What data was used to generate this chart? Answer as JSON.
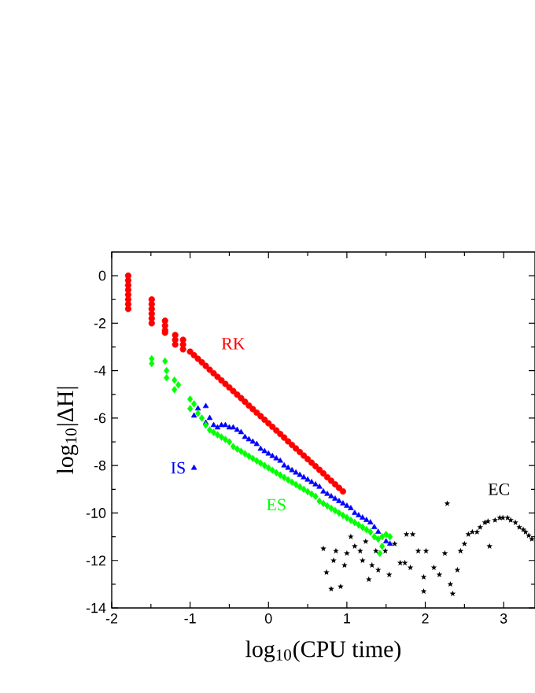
{
  "chart_data": {
    "type": "scatter",
    "xlabel": "log$_{10}$(CPU time)",
    "ylabel": "log$_{10}$|ΔH|",
    "xlim": [
      -2,
      3.4
    ],
    "ylim": [
      -14,
      1
    ],
    "xticks": [
      -2,
      -1,
      0,
      1,
      2,
      3
    ],
    "yticks": [
      -14,
      -12,
      -10,
      -8,
      -6,
      -4,
      -2,
      0
    ],
    "grid": false,
    "series": [
      {
        "name": "RK",
        "color": "#ff0000",
        "marker": "circle",
        "x": [
          -1.79,
          -1.79,
          -1.79,
          -1.79,
          -1.79,
          -1.79,
          -1.79,
          -1.79,
          -1.49,
          -1.49,
          -1.49,
          -1.49,
          -1.49,
          -1.49,
          -1.32,
          -1.32,
          -1.32,
          -1.32,
          -1.19,
          -1.19,
          -1.19,
          -1.09,
          -1.09,
          -1.09,
          -1.0,
          -0.95,
          -0.9,
          -0.85,
          -0.8,
          -0.75,
          -0.7,
          -0.65,
          -0.6,
          -0.55,
          -0.5,
          -0.45,
          -0.4,
          -0.35,
          -0.3,
          -0.25,
          -0.2,
          -0.15,
          -0.1,
          -0.05,
          0,
          0.05,
          0.1,
          0.15,
          0.2,
          0.25,
          0.3,
          0.35,
          0.4,
          0.45,
          0.5,
          0.55,
          0.6,
          0.65,
          0.7,
          0.75,
          0.8,
          0.85,
          0.9,
          0.95
        ],
        "values": [
          0,
          -0.2,
          -0.4,
          -0.6,
          -0.8,
          -1.0,
          -1.2,
          -1.4,
          -1.0,
          -1.2,
          -1.4,
          -1.6,
          -1.8,
          -2.0,
          -1.9,
          -2.1,
          -2.3,
          -2.4,
          -2.5,
          -2.7,
          -2.9,
          -2.7,
          -2.9,
          -3.1,
          -3.2,
          -3.35,
          -3.5,
          -3.65,
          -3.8,
          -3.96,
          -4.11,
          -4.26,
          -4.41,
          -4.56,
          -4.71,
          -4.86,
          -5.01,
          -5.16,
          -5.31,
          -5.47,
          -5.62,
          -5.77,
          -5.92,
          -6.07,
          -6.22,
          -6.37,
          -6.52,
          -6.67,
          -6.82,
          -6.98,
          -7.13,
          -7.28,
          -7.43,
          -7.58,
          -7.73,
          -7.88,
          -8.03,
          -8.18,
          -8.33,
          -8.49,
          -8.64,
          -8.79,
          -8.94,
          -9.09
        ]
      },
      {
        "name": "IS",
        "color": "#0000ff",
        "marker": "triangle",
        "x": [
          -0.95,
          -0.9,
          -0.8,
          -0.8,
          -0.75,
          -0.7,
          -0.65,
          -0.6,
          -0.55,
          -0.5,
          -0.45,
          -0.4,
          -0.35,
          -0.3,
          -0.25,
          -0.2,
          -0.15,
          -0.1,
          -0.05,
          0,
          0.05,
          0.1,
          0.15,
          0.2,
          0.25,
          0.3,
          0.35,
          0.4,
          0.45,
          0.5,
          0.55,
          0.6,
          0.65,
          0.7,
          0.75,
          0.8,
          0.85,
          0.9,
          0.95,
          1.0,
          1.05,
          1.1,
          1.15,
          1.2,
          1.25,
          1.3,
          1.35,
          1.4,
          1.5,
          1.55,
          -0.95
        ],
        "values": [
          -5.9,
          -5.6,
          -5.5,
          -6.2,
          -6.0,
          -6.3,
          -6.4,
          -6.3,
          -6.3,
          -6.4,
          -6.4,
          -6.5,
          -6.6,
          -6.8,
          -6.9,
          -7.0,
          -7.1,
          -7.3,
          -7.4,
          -7.5,
          -7.6,
          -7.7,
          -7.8,
          -8.0,
          -8.1,
          -8.2,
          -8.3,
          -8.4,
          -8.5,
          -8.6,
          -8.7,
          -8.8,
          -8.9,
          -9.1,
          -9.2,
          -9.3,
          -9.4,
          -9.5,
          -9.6,
          -9.7,
          -9.8,
          -10.0,
          -10.1,
          -10.2,
          -10.3,
          -10.4,
          -10.6,
          -10.8,
          -11.2,
          -11.3,
          -8.1
        ]
      },
      {
        "name": "ES",
        "color": "#00ff00",
        "marker": "diamond",
        "x": [
          -1.49,
          -1.49,
          -1.32,
          -1.3,
          -1.3,
          -1.2,
          -1.2,
          -1.15,
          -1.0,
          -1.0,
          -0.95,
          -0.9,
          -0.85,
          -0.8,
          -0.75,
          -0.7,
          -0.65,
          -0.6,
          -0.55,
          -0.5,
          -0.45,
          -0.4,
          -0.35,
          -0.3,
          -0.25,
          -0.2,
          -0.15,
          -0.1,
          -0.05,
          0,
          0.05,
          0.1,
          0.15,
          0.2,
          0.25,
          0.3,
          0.35,
          0.4,
          0.45,
          0.5,
          0.55,
          0.6,
          0.65,
          0.7,
          0.75,
          0.8,
          0.85,
          0.9,
          0.95,
          1.0,
          1.05,
          1.1,
          1.15,
          1.2,
          1.25,
          1.3,
          1.35,
          1.4,
          1.45,
          1.5,
          1.55,
          1.45,
          1.42
        ],
        "values": [
          -3.5,
          -3.7,
          -3.6,
          -4.0,
          -4.3,
          -4.4,
          -4.8,
          -4.6,
          -5.2,
          -5.6,
          -5.4,
          -5.8,
          -6.0,
          -6.3,
          -6.5,
          -6.6,
          -6.7,
          -6.8,
          -6.9,
          -7.0,
          -7.2,
          -7.3,
          -7.4,
          -7.5,
          -7.6,
          -7.7,
          -7.8,
          -7.9,
          -8.0,
          -8.1,
          -8.2,
          -8.3,
          -8.4,
          -8.5,
          -8.6,
          -8.7,
          -8.8,
          -8.9,
          -9.0,
          -9.1,
          -9.2,
          -9.3,
          -9.5,
          -9.6,
          -9.7,
          -9.8,
          -9.9,
          -10.0,
          -10.1,
          -10.2,
          -10.3,
          -10.4,
          -10.5,
          -10.6,
          -10.7,
          -10.8,
          -11.0,
          -11.1,
          -11.0,
          -10.9,
          -11.0,
          -11.4,
          -11.7
        ]
      },
      {
        "name": "EC",
        "color": "#000000",
        "marker": "star",
        "x": [
          0.7,
          0.74,
          0.8,
          0.83,
          0.86,
          0.92,
          0.97,
          1.0,
          1.05,
          1.1,
          1.17,
          1.2,
          1.24,
          1.28,
          1.32,
          1.37,
          1.4,
          1.49,
          1.54,
          1.61,
          1.68,
          1.74,
          1.76,
          1.81,
          1.84,
          1.91,
          1.98,
          1.98,
          2.01,
          2.11,
          2.18,
          2.25,
          2.28,
          2.32,
          2.35,
          2.41,
          2.45,
          2.5,
          2.55,
          2.66,
          2.76,
          2.82,
          2.89,
          2.99,
          3.09,
          3.2,
          3.28,
          3.36,
          2.6,
          2.7,
          2.8,
          2.95,
          3.05,
          3.15,
          3.25,
          3.32
        ],
        "values": [
          -11.5,
          -12.5,
          -13.2,
          -12.0,
          -11.6,
          -13.1,
          -12.2,
          -11.7,
          -11.0,
          -11.4,
          -11.6,
          -12.0,
          -11.2,
          -12.8,
          -12.2,
          -11.6,
          -12.4,
          -11.6,
          -12.6,
          -11.3,
          -12.1,
          -12.1,
          -10.9,
          -12.3,
          -10.9,
          -11.6,
          -12.7,
          -13.3,
          -11.6,
          -12.3,
          -12.6,
          -11.7,
          -9.6,
          -13.0,
          -13.4,
          -12.4,
          -11.6,
          -11.3,
          -10.9,
          -10.8,
          -10.4,
          -11.4,
          -10.3,
          -10.2,
          -10.3,
          -10.6,
          -10.8,
          -11.1,
          -10.8,
          -10.6,
          -10.35,
          -10.2,
          -10.2,
          -10.4,
          -10.7,
          -10.95
        ]
      }
    ]
  }
}
